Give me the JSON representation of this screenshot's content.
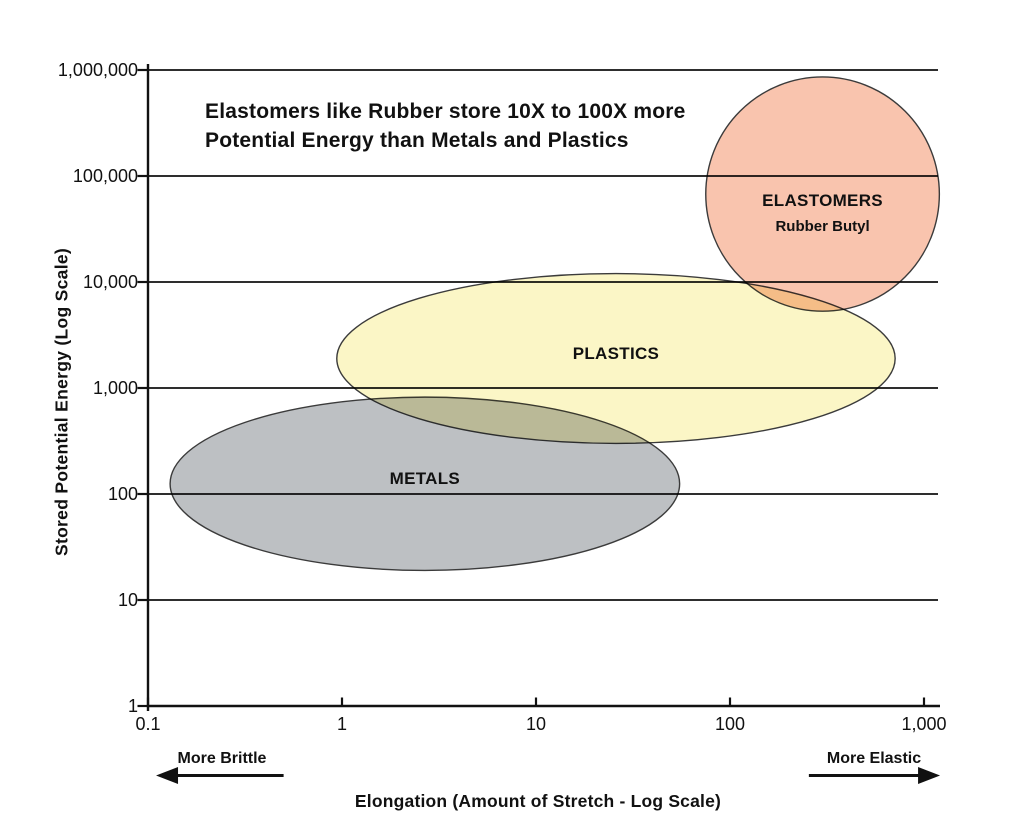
{
  "figure": {
    "title_lines": [
      "Elastomers like Rubber store 10X to 100X more",
      "Potential Energy than Metals and Plastics"
    ],
    "x_axis_title": "Elongation (Amount of Stretch - Log Scale)",
    "y_axis_title": "Stored Potential Energy (Log Scale)"
  },
  "chart_data": {
    "type": "scatter",
    "subtype": "log-log material property regions (ellipses)",
    "title": "Elastomers like Rubber store 10X to 100X more Potential Energy than Metals and Plastics",
    "xlabel": "Elongation (Amount of Stretch - Log Scale)",
    "ylabel": "Stored Potential Energy (Log Scale)",
    "x_scale": "log",
    "y_scale": "log",
    "xlim": [
      0.1,
      1200
    ],
    "ylim": [
      1,
      1000000
    ],
    "grid": "horizontal gridlines at each y-axis decade",
    "legend": "none",
    "x_ticks": {
      "values": [
        0.1,
        1,
        10,
        100,
        1000
      ],
      "labels": [
        "0.1",
        "1",
        "10",
        "100",
        "1,000"
      ]
    },
    "y_ticks": {
      "values": [
        1,
        10,
        100,
        1000,
        10000,
        100000,
        1000000
      ],
      "labels": [
        "1",
        "10",
        "100",
        "1,000",
        "10,000",
        "100,000",
        "1,000,000"
      ]
    },
    "regions": [
      {
        "name": "METALS",
        "sublabel": "",
        "fill": "#bdc0c3",
        "x_range": [
          0.13,
          55
        ],
        "y_range": [
          19,
          820
        ],
        "center_x": 2.7,
        "center_y": 125
      },
      {
        "name": "PLASTICS",
        "sublabel": "",
        "fill": "#fbf6c6",
        "x_range": [
          0.94,
          710
        ],
        "y_range": [
          300,
          12000
        ],
        "center_x": 26,
        "center_y": 1900
      },
      {
        "name": "ELASTOMERS",
        "sublabel": "Rubber Butyl",
        "fill": "#f9c4ae",
        "x_range": [
          75,
          1200
        ],
        "y_range": [
          5300,
          860000
        ],
        "center_x": 300,
        "center_y": 68000
      }
    ],
    "annotations": [
      {
        "text": "More Brittle",
        "arrow": "left",
        "x_range": [
          0.11,
          0.5
        ]
      },
      {
        "text": "More Elastic",
        "arrow": "right",
        "x_range": [
          255,
          1210
        ]
      }
    ],
    "colors": {
      "metals": "#bdc0c3",
      "plastics": "#fbf6c6",
      "elastomers": "#f9c4ae",
      "line": "#111111",
      "background": "#ffffff"
    }
  }
}
